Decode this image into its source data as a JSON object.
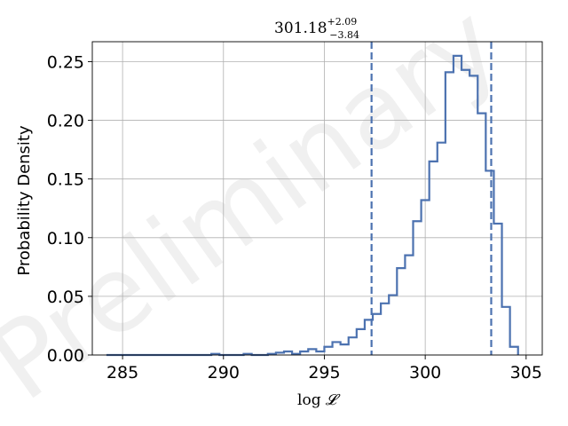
{
  "chart_data": {
    "type": "histogram",
    "title": {
      "value": "301.18",
      "upper": "+2.09",
      "lower": "−3.84"
    },
    "xlabel": {
      "func": "log",
      "symbol": "𝓛"
    },
    "ylabel": "Probability Density",
    "xlim": [
      283.5,
      305.8
    ],
    "ylim": [
      0,
      0.267
    ],
    "xticks": [
      285,
      290,
      295,
      300,
      305
    ],
    "yticks": [
      0.0,
      0.05,
      0.1,
      0.15,
      0.2,
      0.25
    ],
    "ytick_labels": [
      "0.00",
      "0.05",
      "0.10",
      "0.15",
      "0.20",
      "0.25"
    ],
    "xtick_labels": [
      "285",
      "290",
      "295",
      "300",
      "305"
    ],
    "grid": true,
    "line_color": "#4c72b0",
    "bin_edges": [
      284.2,
      284.6,
      285.0,
      285.4,
      285.8,
      286.2,
      286.6,
      287.0,
      287.4,
      287.8,
      288.2,
      288.6,
      289.0,
      289.4,
      289.8,
      290.2,
      290.6,
      291.0,
      291.4,
      291.8,
      292.2,
      292.6,
      293.0,
      293.4,
      293.8,
      294.2,
      294.6,
      295.0,
      295.4,
      295.8,
      296.2,
      296.6,
      297.0,
      297.4,
      297.8,
      298.2,
      298.6,
      299.0,
      299.4,
      299.8,
      300.2,
      300.6,
      301.0,
      301.4,
      301.8,
      302.2,
      302.6,
      303.0,
      303.4,
      303.8,
      304.2,
      304.6
    ],
    "densities": [
      0.0,
      0.0,
      0.0,
      0.0,
      0.0,
      0.0,
      0.0,
      0.0,
      0.0,
      0.0,
      0.0,
      0.0,
      0.0,
      0.001,
      0.0,
      0.0,
      0.0,
      0.001,
      0.0,
      0.0,
      0.001,
      0.002,
      0.003,
      0.001,
      0.003,
      0.005,
      0.003,
      0.007,
      0.011,
      0.009,
      0.015,
      0.022,
      0.03,
      0.035,
      0.044,
      0.051,
      0.074,
      0.085,
      0.114,
      0.132,
      0.165,
      0.181,
      0.241,
      0.255,
      0.243,
      0.238,
      0.206,
      0.157,
      0.112,
      0.041,
      0.007
    ],
    "vlines": [
      297.34,
      303.27
    ],
    "vline_style": "dashed",
    "watermark": "Preliminary"
  }
}
